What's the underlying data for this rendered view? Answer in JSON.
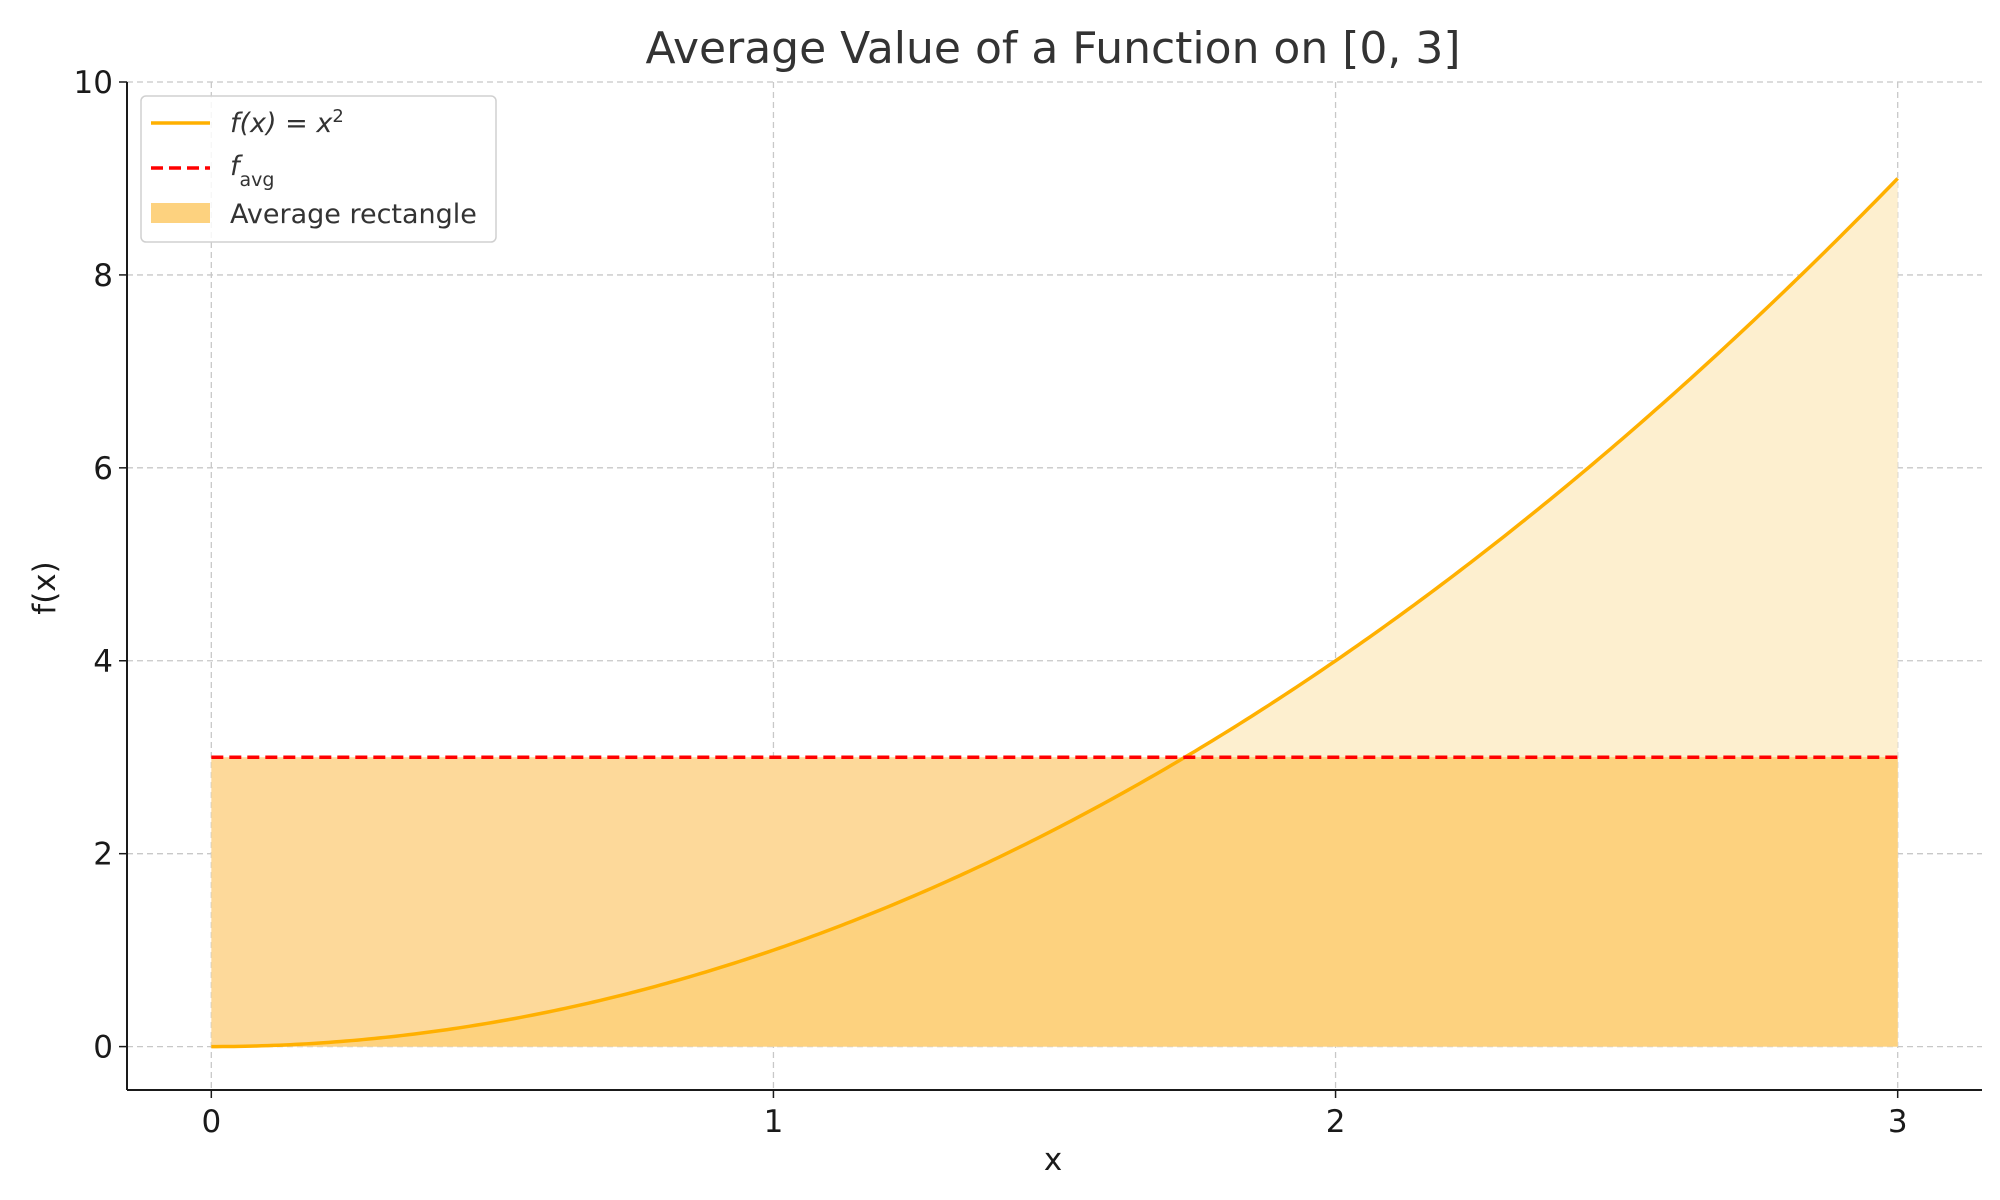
{
  "chart_data": {
    "type": "area",
    "title": "Average Value of a Function on [0, 3]",
    "xlabel": "x",
    "ylabel": "f(x)",
    "xlim": [
      -0.15,
      3.15
    ],
    "ylim": [
      -0.45,
      10
    ],
    "x_ticks": [
      0,
      1,
      2,
      3
    ],
    "y_ticks": [
      0,
      2,
      4,
      6,
      8,
      10
    ],
    "grid": true,
    "legend_position": "top-left",
    "colors": {
      "curve": "#ffb000",
      "avg_line": "#ff0000",
      "rect_fill": "#fdd99a",
      "area_fill": "#fdefcf",
      "overlap_fill": "#fdd27f",
      "grid": "#c8c8c8"
    },
    "series": [
      {
        "name": "f(x) = x²",
        "kind": "line",
        "function": "x^2",
        "x": [
          0,
          0.25,
          0.5,
          0.75,
          1,
          1.25,
          1.5,
          1.75,
          2,
          2.25,
          2.5,
          2.75,
          3
        ],
        "y": [
          0,
          0.0625,
          0.25,
          0.5625,
          1,
          1.5625,
          2.25,
          3.0625,
          4,
          5.0625,
          6.25,
          7.5625,
          9
        ]
      },
      {
        "name": "f_avg",
        "kind": "hline",
        "y": 3,
        "x_range": [
          0,
          3
        ]
      },
      {
        "name": "Average rectangle",
        "kind": "rect",
        "x_range": [
          0,
          3
        ],
        "y_range": [
          0,
          3
        ]
      }
    ],
    "legend": [
      {
        "label": "f(x) = x",
        "superscript": "2",
        "style": "line"
      },
      {
        "label": "f",
        "subscript": "avg",
        "style": "dashed"
      },
      {
        "label": "Average rectangle",
        "style": "patch"
      }
    ]
  }
}
